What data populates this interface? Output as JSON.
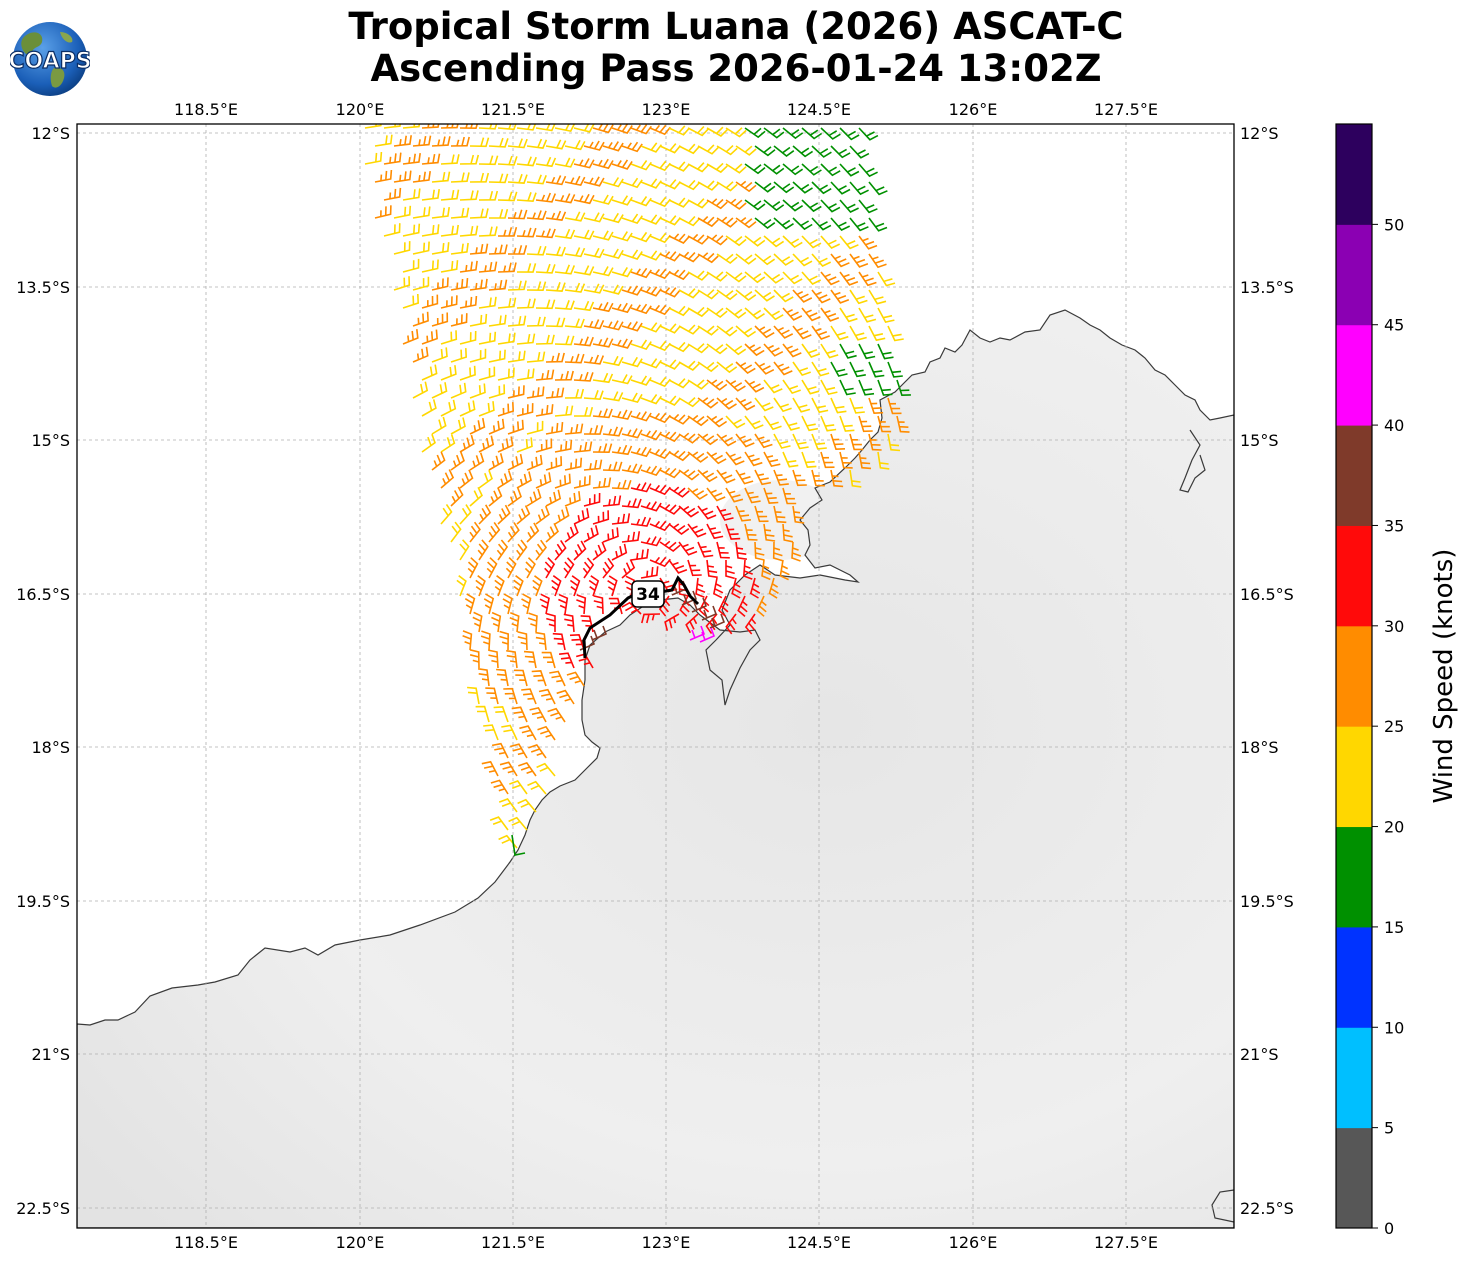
{
  "title": {
    "line1": "Tropical Storm Luana (2026) ASCAT-C",
    "line2": "Ascending Pass 2026-01-24 13:02Z"
  },
  "logo": {
    "text": "COAPS",
    "icon": "globe-logo-icon"
  },
  "map": {
    "lon_labels": [
      "118.5°E",
      "120°E",
      "121.5°E",
      "123°E",
      "124.5°E",
      "126°E",
      "127.5°E"
    ],
    "lat_labels": [
      "12°S",
      "13.5°S",
      "15°S",
      "16.5°S",
      "18°S",
      "19.5°S",
      "21°S",
      "22.5°S"
    ],
    "storm_marker": {
      "label": "34"
    }
  },
  "colorbar": {
    "title": "Wind Speed (knots)",
    "ticks": [
      "0",
      "5",
      "10",
      "15",
      "20",
      "25",
      "30",
      "35",
      "40",
      "45",
      "50"
    ],
    "colors": [
      "#575757",
      "#00bfff",
      "#0033ff",
      "#009000",
      "#ffd700",
      "#ff8c00",
      "#ff0a0a",
      "#7f3a2a",
      "#ff00ff",
      "#8b00b3",
      "#2d005e"
    ]
  }
}
